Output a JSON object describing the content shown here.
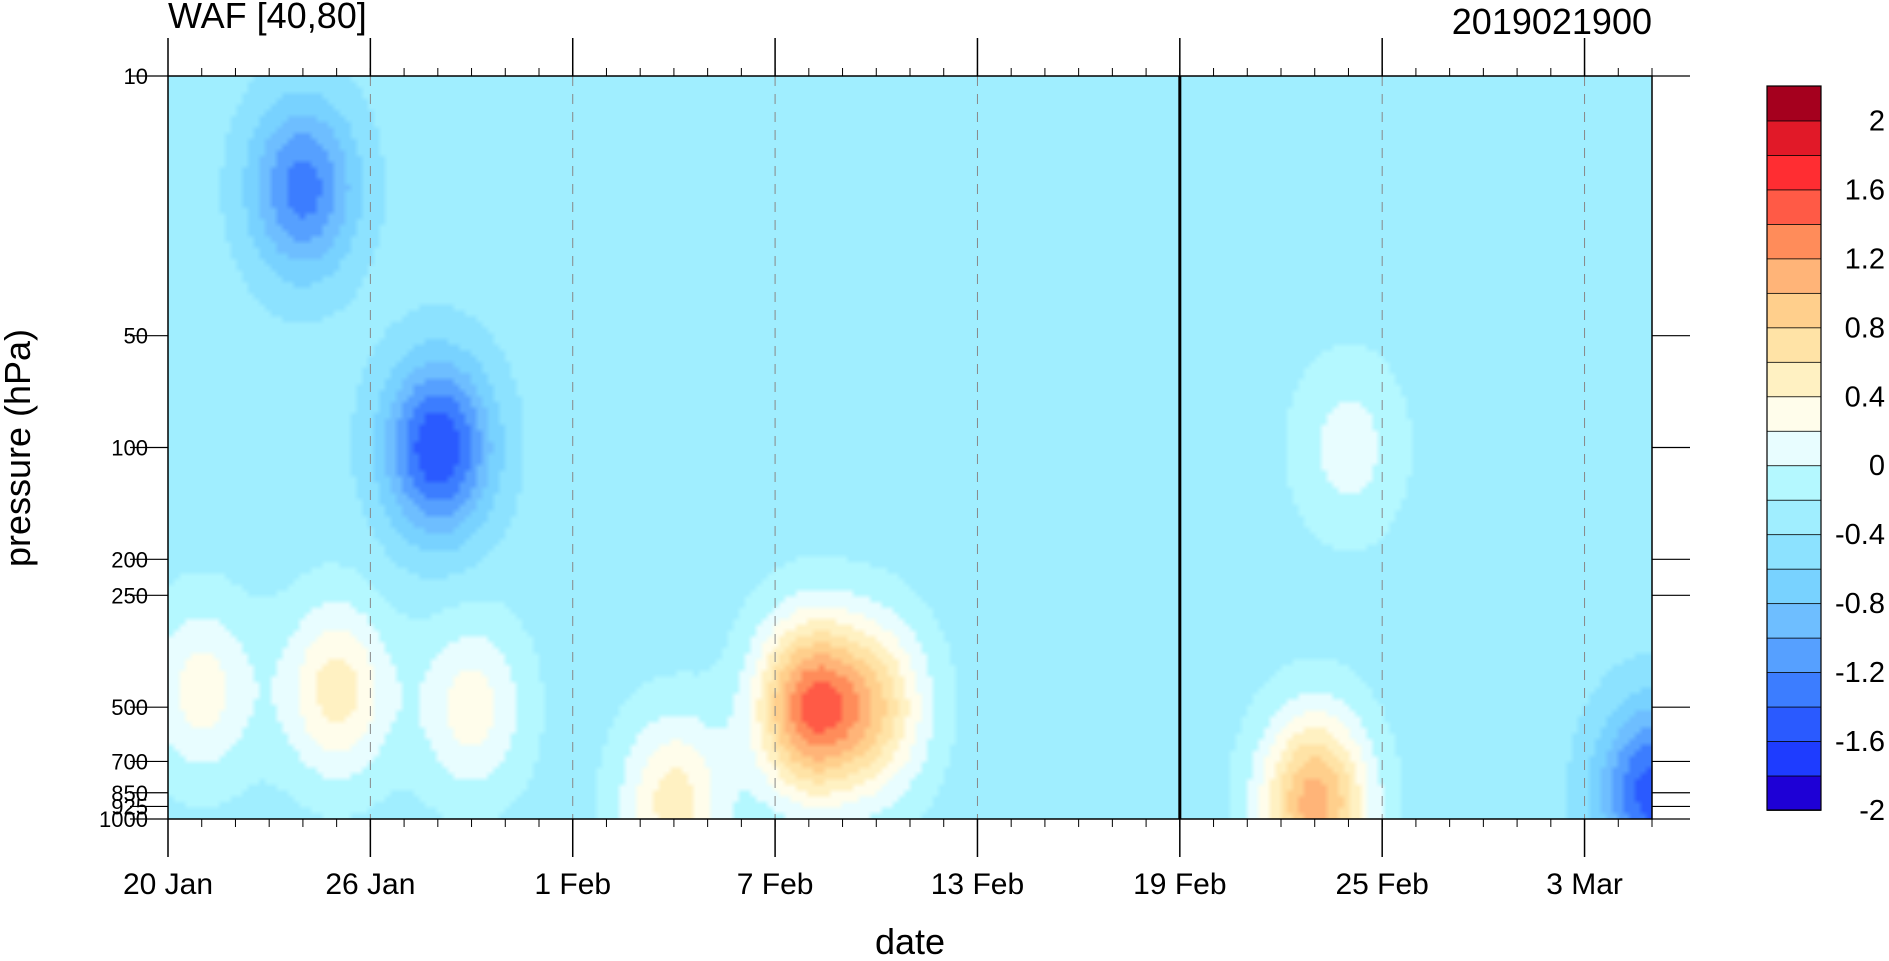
{
  "chart_data": {
    "type": "heatmap",
    "title_left": "WAF [40,80]",
    "title_right": "2019021900",
    "xlabel": "date",
    "ylabel": "pressure (hPa)",
    "x_range": [
      "2019-01-20",
      "2019-03-05"
    ],
    "x_ticks": [
      {
        "date": "2019-01-20",
        "label": "20 Jan"
      },
      {
        "date": "2019-01-26",
        "label": "26 Jan"
      },
      {
        "date": "2019-02-01",
        "label": "1 Feb"
      },
      {
        "date": "2019-02-07",
        "label": "7 Feb"
      },
      {
        "date": "2019-02-13",
        "label": "13 Feb"
      },
      {
        "date": "2019-02-19",
        "label": "19 Feb"
      },
      {
        "date": "2019-02-25",
        "label": "25 Feb"
      },
      {
        "date": "2019-03-03",
        "label": "3 Mar"
      }
    ],
    "y_scale": "log",
    "y_range": [
      1000,
      10
    ],
    "y_ticks": [
      {
        "value": 10,
        "label": "10"
      },
      {
        "value": 50,
        "label": "50"
      },
      {
        "value": 100,
        "label": "100"
      },
      {
        "value": 200,
        "label": "200"
      },
      {
        "value": 250,
        "label": "250"
      },
      {
        "value": 500,
        "label": "500"
      },
      {
        "value": 700,
        "label": "700"
      },
      {
        "value": 850,
        "label": "850"
      },
      {
        "value": 925,
        "label": "925"
      },
      {
        "value": 1000,
        "label": "1000"
      }
    ],
    "reference_line_date": "2019-02-19",
    "colorbar": {
      "levels": [
        -2,
        -1.8,
        -1.6,
        -1.4,
        -1.2,
        -1,
        -0.8,
        -0.6,
        -0.4,
        -0.2,
        0,
        0.2,
        0.4,
        0.6,
        0.8,
        1,
        1.2,
        1.4,
        1.6,
        1.8,
        2
      ],
      "labels": [
        "2",
        "1.6",
        "1.2",
        "0.8",
        "0.4",
        "0",
        "-0.4",
        "-0.8",
        "-1.2",
        "-1.6",
        "-2"
      ],
      "label_values": [
        2,
        1.6,
        1.2,
        0.8,
        0.4,
        0,
        -0.4,
        -0.8,
        -1.2,
        -1.6,
        -2
      ],
      "colors": [
        "#1e00d6",
        "#1e3cff",
        "#2a5aff",
        "#3c7dff",
        "#56a0ff",
        "#6ebeff",
        "#78d2ff",
        "#8ce2ff",
        "#a0eeff",
        "#b4f8ff",
        "#e8fdff",
        "#fffdeb",
        "#fff1c2",
        "#ffe3a6",
        "#ffcf8c",
        "#ffb478",
        "#ff8c5a",
        "#ff5a46",
        "#ff2d32",
        "#e11928",
        "#a5001e"
      ]
    },
    "grid": "dashed vertical at x ticks",
    "legend": "colorbar right",
    "features": [
      {
        "date": "2019-01-28",
        "pressure": 100,
        "value": -1.3
      },
      {
        "date": "2019-01-24",
        "pressure": 20,
        "value": -1.0
      },
      {
        "date": "2019-01-21",
        "pressure": 450,
        "value": 0.6
      },
      {
        "date": "2019-01-25",
        "pressure": 450,
        "value": 0.8
      },
      {
        "date": "2019-01-29",
        "pressure": 500,
        "value": 0.6
      },
      {
        "date": "2019-02-04",
        "pressure": 900,
        "value": 0.8
      },
      {
        "date": "2019-02-08",
        "pressure": 500,
        "value": 1.6
      },
      {
        "date": "2019-02-10",
        "pressure": 500,
        "value": 0.9
      },
      {
        "date": "2019-02-15",
        "pressure": 220,
        "value": 0.1
      },
      {
        "date": "2019-02-24",
        "pressure": 100,
        "value": 0.4
      },
      {
        "date": "2019-02-23",
        "pressure": 900,
        "value": 1.4
      },
      {
        "date": "2019-02-28",
        "pressure": 15,
        "value": 0.1
      },
      {
        "date": "2019-03-05",
        "pressure": 850,
        "value": -1.2
      }
    ]
  }
}
